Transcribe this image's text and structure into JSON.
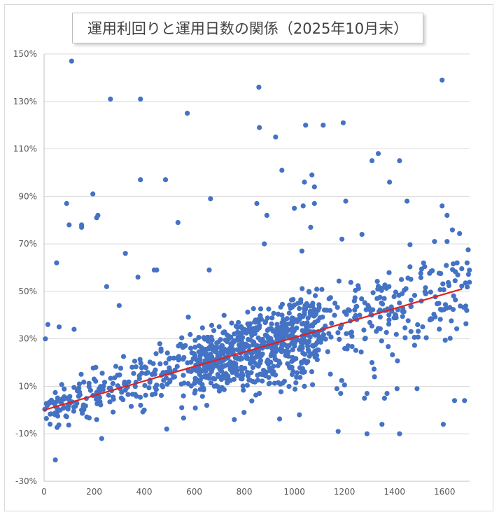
{
  "chart_data": {
    "type": "scatter",
    "title": "運用利回りと運用日数の関係（2025年10月末）",
    "xlabel": "",
    "ylabel": "",
    "xlim": [
      0,
      1700
    ],
    "ylim": [
      -30,
      150
    ],
    "x_ticks": [
      0,
      200,
      400,
      600,
      800,
      1000,
      1200,
      1400,
      1600
    ],
    "x_tick_labels": [
      "0",
      "200",
      "400",
      "600",
      "800",
      "1000",
      "1200",
      "1400",
      "1600"
    ],
    "y_ticks": [
      -30,
      -10,
      10,
      30,
      50,
      70,
      90,
      110,
      130,
      150
    ],
    "y_tick_labels": [
      "-30%",
      "-10%",
      "10%",
      "30%",
      "50%",
      "70%",
      "90%",
      "110%",
      "130%",
      "150%"
    ],
    "grid": true,
    "legend": "none",
    "marker_color": "#4472C4",
    "trendline_color": "#E02020",
    "trendline": {
      "x": [
        0,
        1670
      ],
      "y": [
        0,
        51
      ]
    },
    "outliers": [
      [
        110,
        147
      ],
      [
        265,
        131
      ],
      [
        385,
        131
      ],
      [
        572,
        125
      ],
      [
        858,
        136
      ],
      [
        1590,
        139
      ],
      [
        860,
        119
      ],
      [
        1045,
        120
      ],
      [
        1115,
        120
      ],
      [
        1195,
        121
      ],
      [
        925,
        115
      ],
      [
        1335,
        108
      ],
      [
        1310,
        105
      ],
      [
        1420,
        105
      ],
      [
        950,
        101
      ],
      [
        1070,
        99
      ],
      [
        385,
        97
      ],
      [
        485,
        97
      ],
      [
        1040,
        96
      ],
      [
        1080,
        94
      ],
      [
        1380,
        96
      ],
      [
        195,
        91
      ],
      [
        665,
        89
      ],
      [
        1205,
        88
      ],
      [
        1450,
        88
      ],
      [
        90,
        87
      ],
      [
        850,
        87
      ],
      [
        1035,
        86
      ],
      [
        1080,
        87
      ],
      [
        1610,
        82
      ],
      [
        215,
        82
      ],
      [
        210,
        81
      ],
      [
        890,
        82
      ],
      [
        100,
        78
      ],
      [
        150,
        78
      ],
      [
        150,
        77
      ],
      [
        535,
        79
      ],
      [
        1065,
        77
      ],
      [
        1590,
        86
      ],
      [
        50,
        62
      ],
      [
        325,
        66
      ],
      [
        1270,
        74
      ],
      [
        440,
        59
      ],
      [
        450,
        59
      ],
      [
        660,
        59
      ],
      [
        375,
        56
      ],
      [
        15,
        36
      ],
      [
        60,
        35
      ],
      [
        5,
        30
      ],
      [
        120,
        34
      ],
      [
        250,
        52
      ],
      [
        300,
        44
      ],
      [
        1290,
        -10
      ],
      [
        1350,
        -6
      ],
      [
        1420,
        -10
      ],
      [
        1595,
        -6
      ],
      [
        1175,
        -9
      ],
      [
        1020,
        -2
      ],
      [
        760,
        -4
      ],
      [
        490,
        -8
      ],
      [
        230,
        -12
      ],
      [
        45,
        -21
      ],
      [
        210,
        -4
      ],
      [
        400,
        0
      ],
      [
        150,
        0
      ],
      [
        1170,
        9
      ],
      [
        1185,
        7
      ],
      [
        1280,
        5
      ],
      [
        1290,
        7
      ],
      [
        1370,
        7
      ],
      [
        1360,
        5
      ],
      [
        1410,
        9
      ],
      [
        1490,
        9
      ],
      [
        1640,
        4
      ],
      [
        1680,
        4
      ],
      [
        1310,
        20
      ],
      [
        1320,
        14
      ],
      [
        1040,
        10
      ],
      [
        860,
        7
      ],
      [
        700,
        8
      ],
      [
        650,
        2
      ],
      [
        550,
        1
      ],
      [
        1000,
        85
      ],
      [
        880,
        70
      ],
      [
        1030,
        67
      ],
      [
        1190,
        72
      ],
      [
        1560,
        71
      ],
      [
        1610,
        71
      ],
      [
        1650,
        62
      ],
      [
        1690,
        62
      ]
    ],
    "trend_point_count": 1100,
    "trend_spread": {
      "sd_y": 7
    }
  }
}
